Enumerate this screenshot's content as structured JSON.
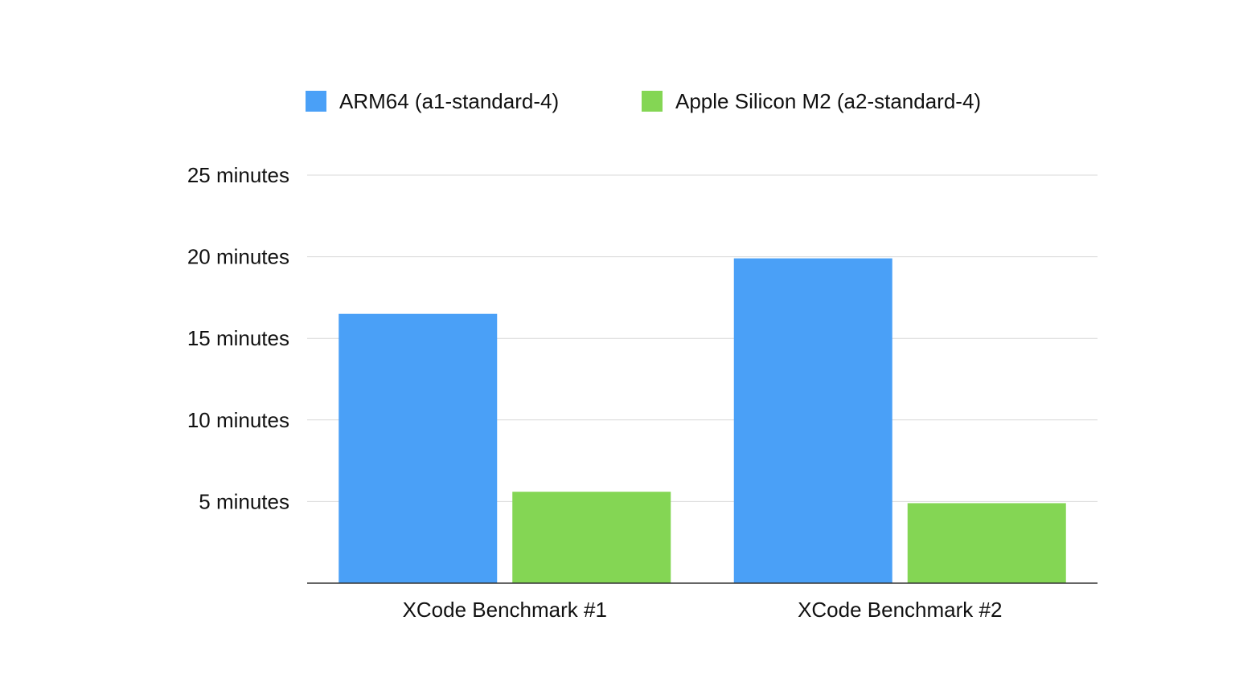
{
  "chart_data": {
    "type": "bar",
    "title": "",
    "xlabel": "",
    "ylabel": "",
    "categories": [
      "XCode Benchmark #1",
      "XCode Benchmark #2"
    ],
    "series": [
      {
        "name": "ARM64 (a1-standard-4)",
        "color": "#4aa0f7",
        "values": [
          16.5,
          19.9
        ]
      },
      {
        "name": "Apple Silicon M2 (a2-standard-4)",
        "color": "#84d654",
        "values": [
          5.6,
          4.9
        ]
      }
    ],
    "ylim": [
      0,
      25
    ],
    "yticks": [
      {
        "value": 5,
        "label": "5 minutes"
      },
      {
        "value": 10,
        "label": "10 minutes"
      },
      {
        "value": 15,
        "label": "15 minutes"
      },
      {
        "value": 20,
        "label": "20 minutes"
      },
      {
        "value": 25,
        "label": "25 minutes"
      }
    ],
    "grid": true,
    "legend_position": "top"
  }
}
